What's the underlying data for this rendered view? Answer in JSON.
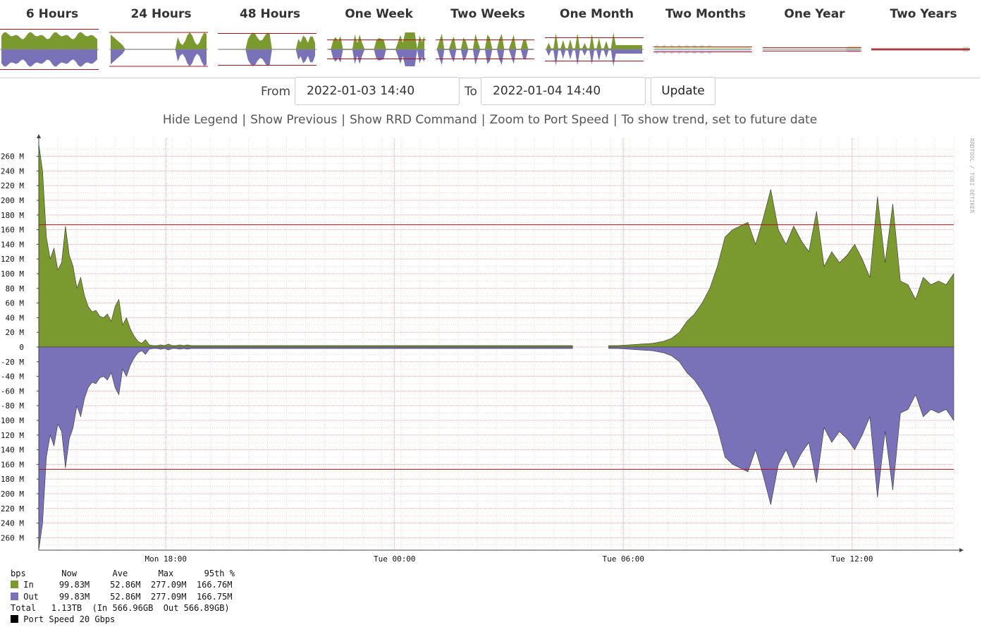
{
  "tabs": [
    {
      "label": "6 Hours",
      "thumb": "6h"
    },
    {
      "label": "24 Hours",
      "thumb": "24h"
    },
    {
      "label": "48 Hours",
      "thumb": "48h"
    },
    {
      "label": "One Week",
      "thumb": "1w"
    },
    {
      "label": "Two Weeks",
      "thumb": "2w"
    },
    {
      "label": "One Month",
      "thumb": "1m"
    },
    {
      "label": "Two Months",
      "thumb": "2m"
    },
    {
      "label": "One Year",
      "thumb": "1y"
    },
    {
      "label": "Two Years",
      "thumb": "2y"
    }
  ],
  "range": {
    "from_label": "From",
    "from_value": "2022-01-03 14:40",
    "to_label": "To",
    "to_value": "2022-01-04 14:40",
    "update_label": "Update"
  },
  "links": [
    "Hide Legend",
    "Show Previous",
    "Show RRD Command",
    "Zoom to Port Speed",
    "To show trend, set to future date"
  ],
  "colors": {
    "in": "#7a9a30",
    "out": "#7a72b8",
    "percentile_line": "#b01010",
    "grid_major": "#f0a0a0",
    "grid_minor": "#f6d4d4"
  },
  "chart_data": {
    "type": "area",
    "watermark": "RRDTOOL / TOBI OETIKER",
    "y_unit": "bps",
    "ylim": [
      -275,
      275
    ],
    "yticks": [
      260,
      240,
      220,
      200,
      180,
      160,
      140,
      120,
      100,
      80,
      60,
      40,
      20,
      0,
      -20,
      -40,
      -60,
      -80,
      -100,
      -120,
      -140,
      -160,
      -180,
      -200,
      -220,
      -240,
      -260
    ],
    "ytick_labels": [
      "260 M",
      "240 M",
      "220 M",
      "200 M",
      "180 M",
      "160 M",
      "140 M",
      "120 M",
      "100 M",
      "80 M",
      "60 M",
      "40 M",
      "20 M",
      "0",
      "-20 M",
      "-40 M",
      "-60 M",
      "-80 M",
      "-100 M",
      "-120 M",
      "-140 M",
      "-160 M",
      "-180 M",
      "-200 M",
      "-220 M",
      "-240 M",
      "-260 M"
    ],
    "x_range_hours": [
      0,
      24
    ],
    "x_unit": "hours since 2022-01-03 14:40",
    "xticks": [
      {
        "label": "Mon 18:00",
        "hour": 3.333
      },
      {
        "label": "Tue 00:00",
        "hour": 9.333
      },
      {
        "label": "Tue 06:00",
        "hour": 15.333
      },
      {
        "label": "Tue 12:00",
        "hour": 21.333
      }
    ],
    "percentile_95": 166.76,
    "series": [
      {
        "name": "In",
        "x": [
          0,
          0.1,
          0.2,
          0.3,
          0.4,
          0.5,
          0.6,
          0.7,
          0.8,
          0.9,
          1.0,
          1.1,
          1.2,
          1.3,
          1.4,
          1.5,
          1.6,
          1.7,
          1.8,
          1.9,
          2.0,
          2.1,
          2.2,
          2.3,
          2.4,
          2.5,
          2.6,
          2.7,
          2.8,
          2.9,
          3.0,
          3.1,
          3.2,
          3.3,
          3.4,
          3.5,
          3.6,
          3.7,
          3.8,
          3.9,
          4.0,
          4.2,
          4.5,
          4.8,
          5.2,
          5.6,
          6.0,
          7,
          8,
          9,
          10,
          11,
          12,
          13,
          14,
          14.7,
          14.95,
          15.2,
          15.5,
          15.8,
          16.1,
          16.4,
          16.6,
          16.8,
          17.0,
          17.2,
          17.4,
          17.6,
          17.8,
          18.0,
          18.2,
          18.4,
          18.6,
          18.8,
          19.0,
          19.2,
          19.4,
          19.6,
          19.8,
          20.0,
          20.2,
          20.4,
          20.6,
          20.8,
          21.0,
          21.2,
          21.4,
          21.6,
          21.8,
          22.0,
          22.2,
          22.4,
          22.6,
          22.8,
          23.0,
          23.2,
          23.4,
          23.6,
          23.8,
          24
        ],
        "y": [
          277,
          240,
          150,
          120,
          135,
          105,
          115,
          165,
          125,
          110,
          80,
          95,
          70,
          55,
          48,
          50,
          42,
          40,
          45,
          35,
          55,
          65,
          30,
          40,
          25,
          15,
          8,
          5,
          10,
          3,
          2,
          2,
          3,
          2,
          4,
          2,
          2,
          3,
          2,
          3,
          2,
          2,
          2,
          2,
          2,
          2,
          2,
          2,
          2,
          2,
          2,
          2,
          2,
          2,
          2,
          null,
          2,
          2,
          3,
          4,
          5,
          8,
          12,
          20,
          35,
          45,
          60,
          80,
          110,
          150,
          160,
          165,
          170,
          140,
          175,
          215,
          160,
          140,
          165,
          145,
          130,
          185,
          110,
          130,
          115,
          125,
          140,
          120,
          95,
          205,
          115,
          195,
          90,
          85,
          65,
          95,
          85,
          90,
          85,
          100
        ]
      },
      {
        "name": "Out",
        "x": [
          0,
          0.1,
          0.2,
          0.3,
          0.4,
          0.5,
          0.6,
          0.7,
          0.8,
          0.9,
          1.0,
          1.1,
          1.2,
          1.3,
          1.4,
          1.5,
          1.6,
          1.7,
          1.8,
          1.9,
          2.0,
          2.1,
          2.2,
          2.3,
          2.4,
          2.5,
          2.6,
          2.7,
          2.8,
          2.9,
          3.0,
          3.1,
          3.2,
          3.3,
          3.4,
          3.5,
          3.6,
          3.7,
          3.8,
          3.9,
          4.0,
          4.2,
          4.5,
          4.8,
          5.2,
          5.6,
          6.0,
          7,
          8,
          9,
          10,
          11,
          12,
          13,
          14,
          14.7,
          14.95,
          15.2,
          15.5,
          15.8,
          16.1,
          16.4,
          16.6,
          16.8,
          17.0,
          17.2,
          17.4,
          17.6,
          17.8,
          18.0,
          18.2,
          18.4,
          18.6,
          18.8,
          19.0,
          19.2,
          19.4,
          19.6,
          19.8,
          20.0,
          20.2,
          20.4,
          20.6,
          20.8,
          21.0,
          21.2,
          21.4,
          21.6,
          21.8,
          22.0,
          22.2,
          22.4,
          22.6,
          22.8,
          23.0,
          23.2,
          23.4,
          23.6,
          23.8,
          24
        ],
        "y": [
          -277,
          -240,
          -150,
          -120,
          -135,
          -105,
          -115,
          -165,
          -125,
          -110,
          -80,
          -95,
          -70,
          -55,
          -48,
          -50,
          -42,
          -40,
          -45,
          -35,
          -55,
          -65,
          -30,
          -40,
          -25,
          -15,
          -8,
          -5,
          -10,
          -3,
          -2,
          -2,
          -3,
          -2,
          -4,
          -2,
          -2,
          -3,
          -2,
          -3,
          -2,
          -2,
          -2,
          -2,
          -2,
          -2,
          -2,
          -2,
          -2,
          -2,
          -2,
          -2,
          -2,
          -2,
          -2,
          null,
          -2,
          -2,
          -3,
          -4,
          -5,
          -8,
          -12,
          -20,
          -35,
          -45,
          -60,
          -80,
          -110,
          -150,
          -160,
          -165,
          -170,
          -140,
          -175,
          -215,
          -160,
          -140,
          -165,
          -145,
          -130,
          -185,
          -110,
          -130,
          -115,
          -125,
          -140,
          -120,
          -95,
          -205,
          -115,
          -195,
          -90,
          -85,
          -65,
          -95,
          -85,
          -90,
          -85,
          -100
        ]
      }
    ]
  },
  "legend": {
    "header": {
      "unit": "bps",
      "now": "Now",
      "ave": "Ave",
      "max": "Max",
      "pct": "95th %"
    },
    "rows": [
      {
        "name": "In",
        "now": "99.83M",
        "ave": "52.86M",
        "max": "277.09M",
        "pct": "166.76M"
      },
      {
        "name": "Out",
        "now": "99.83M",
        "ave": "52.86M",
        "max": "277.09M",
        "pct": "166.75M"
      }
    ],
    "total_line": "Total   1.13TB  (In 566.96GB  Out 566.89GB)",
    "port_speed": "Port Speed 20 Gbps"
  }
}
